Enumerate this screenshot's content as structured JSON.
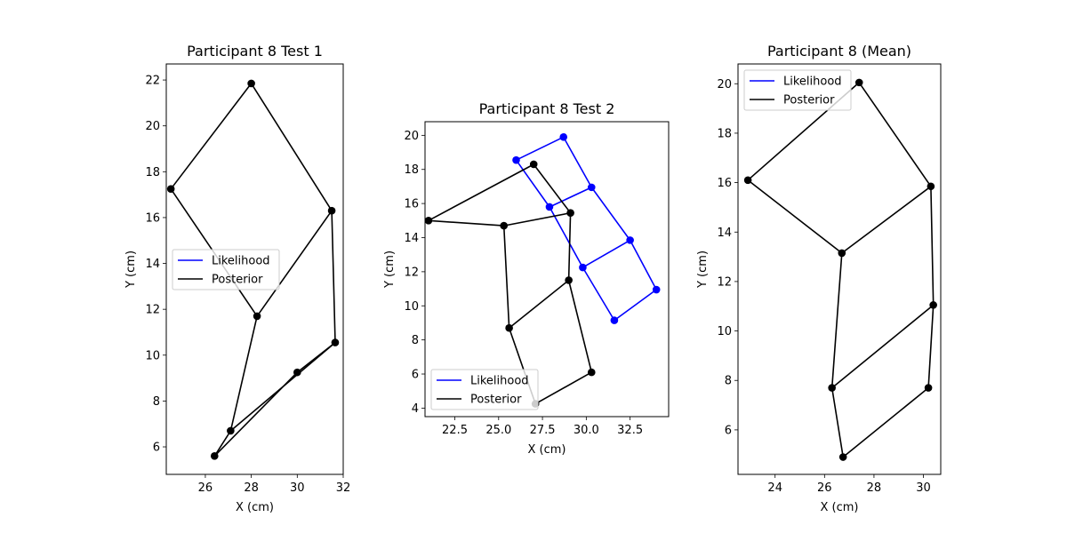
{
  "chart_data": [
    {
      "type": "line",
      "title": "Participant 8 Test 1",
      "xlabel": "X (cm)",
      "ylabel": "Y (cm)",
      "xlim": [
        24.3,
        32.0
      ],
      "ylim": [
        4.8,
        22.7
      ],
      "xticks": [
        26,
        28,
        30,
        32
      ],
      "yticks": [
        6,
        8,
        10,
        12,
        14,
        16,
        18,
        20,
        22
      ],
      "legend": {
        "placement": "center-left",
        "entries": [
          "Likelihood",
          "Posterior"
        ]
      },
      "colors": {
        "Likelihood": "#0000ff",
        "Posterior": "#000000"
      },
      "series": [
        {
          "name": "Likelihood",
          "color": "#0000ff",
          "segments": []
        },
        {
          "name": "Posterior",
          "color": "#000000",
          "segments": [
            [
              [
                24.5,
                17.25
              ],
              [
                28.0,
                21.85
              ],
              [
                31.5,
                16.3
              ],
              [
                28.25,
                11.7
              ],
              [
                24.5,
                17.25
              ]
            ],
            [
              [
                31.5,
                16.3
              ],
              [
                31.65,
                10.55
              ],
              [
                30.0,
                9.25
              ],
              [
                26.4,
                5.6
              ],
              [
                27.1,
                6.7
              ],
              [
                28.25,
                11.7
              ]
            ],
            [
              [
                31.65,
                10.55
              ],
              [
                27.1,
                6.7
              ]
            ]
          ]
        }
      ]
    },
    {
      "type": "line",
      "title": "Participant 8 Test 2",
      "xlabel": "X (cm)",
      "ylabel": "Y (cm)",
      "xlim": [
        20.8,
        34.7
      ],
      "ylim": [
        3.5,
        20.8
      ],
      "xticks": [
        22.5,
        25.0,
        27.5,
        30.0,
        32.5
      ],
      "xtick_labels": [
        "22.5",
        "25.0",
        "27.5",
        "30.0",
        "32.5"
      ],
      "yticks": [
        4,
        6,
        8,
        10,
        12,
        14,
        16,
        18,
        20
      ],
      "legend": {
        "placement": "lower-left",
        "entries": [
          "Likelihood",
          "Posterior"
        ]
      },
      "colors": {
        "Likelihood": "#0000ff",
        "Posterior": "#000000"
      },
      "series": [
        {
          "name": "Likelihood",
          "color": "#0000ff",
          "segments": [
            [
              [
                26.0,
                18.55
              ],
              [
                28.7,
                19.9
              ],
              [
                30.3,
                16.95
              ],
              [
                32.5,
                13.85
              ],
              [
                34.0,
                10.95
              ],
              [
                31.6,
                9.15
              ],
              [
                29.8,
                12.25
              ],
              [
                27.9,
                15.8
              ],
              [
                26.0,
                18.55
              ]
            ],
            [
              [
                27.9,
                15.8
              ],
              [
                30.3,
                16.95
              ]
            ],
            [
              [
                29.8,
                12.25
              ],
              [
                32.5,
                13.85
              ]
            ]
          ]
        },
        {
          "name": "Posterior",
          "color": "#000000",
          "segments": [
            [
              [
                27.0,
                18.3
              ],
              [
                29.1,
                15.45
              ],
              [
                29.0,
                11.5
              ],
              [
                30.3,
                6.1
              ],
              [
                27.1,
                4.25
              ],
              [
                25.6,
                8.7
              ],
              [
                25.3,
                14.7
              ],
              [
                21.0,
                15.0
              ],
              [
                27.0,
                18.3
              ]
            ],
            [
              [
                25.3,
                14.7
              ],
              [
                29.1,
                15.45
              ]
            ],
            [
              [
                25.6,
                8.7
              ],
              [
                29.0,
                11.5
              ]
            ]
          ]
        }
      ]
    },
    {
      "type": "line",
      "title": "Participant 8 (Mean)",
      "xlabel": "X (cm)",
      "ylabel": "Y (cm)",
      "xlim": [
        22.5,
        30.7
      ],
      "ylim": [
        4.2,
        20.8
      ],
      "xticks": [
        24,
        26,
        28,
        30
      ],
      "yticks": [
        6,
        8,
        10,
        12,
        14,
        16,
        18,
        20
      ],
      "legend": {
        "placement": "upper-left",
        "entries": [
          "Likelihood",
          "Posterior"
        ]
      },
      "colors": {
        "Likelihood": "#0000ff",
        "Posterior": "#000000"
      },
      "series": [
        {
          "name": "Likelihood",
          "color": "#0000ff",
          "segments": []
        },
        {
          "name": "Posterior",
          "color": "#000000",
          "segments": [
            [
              [
                22.9,
                16.1
              ],
              [
                27.4,
                20.05
              ],
              [
                30.3,
                15.85
              ],
              [
                26.7,
                13.15
              ],
              [
                22.9,
                16.1
              ]
            ],
            [
              [
                30.3,
                15.85
              ],
              [
                30.4,
                11.05
              ],
              [
                30.2,
                7.7
              ],
              [
                26.75,
                4.9
              ],
              [
                26.3,
                7.7
              ],
              [
                26.7,
                13.15
              ]
            ],
            [
              [
                30.4,
                11.05
              ],
              [
                26.3,
                7.7
              ]
            ]
          ]
        }
      ]
    }
  ]
}
